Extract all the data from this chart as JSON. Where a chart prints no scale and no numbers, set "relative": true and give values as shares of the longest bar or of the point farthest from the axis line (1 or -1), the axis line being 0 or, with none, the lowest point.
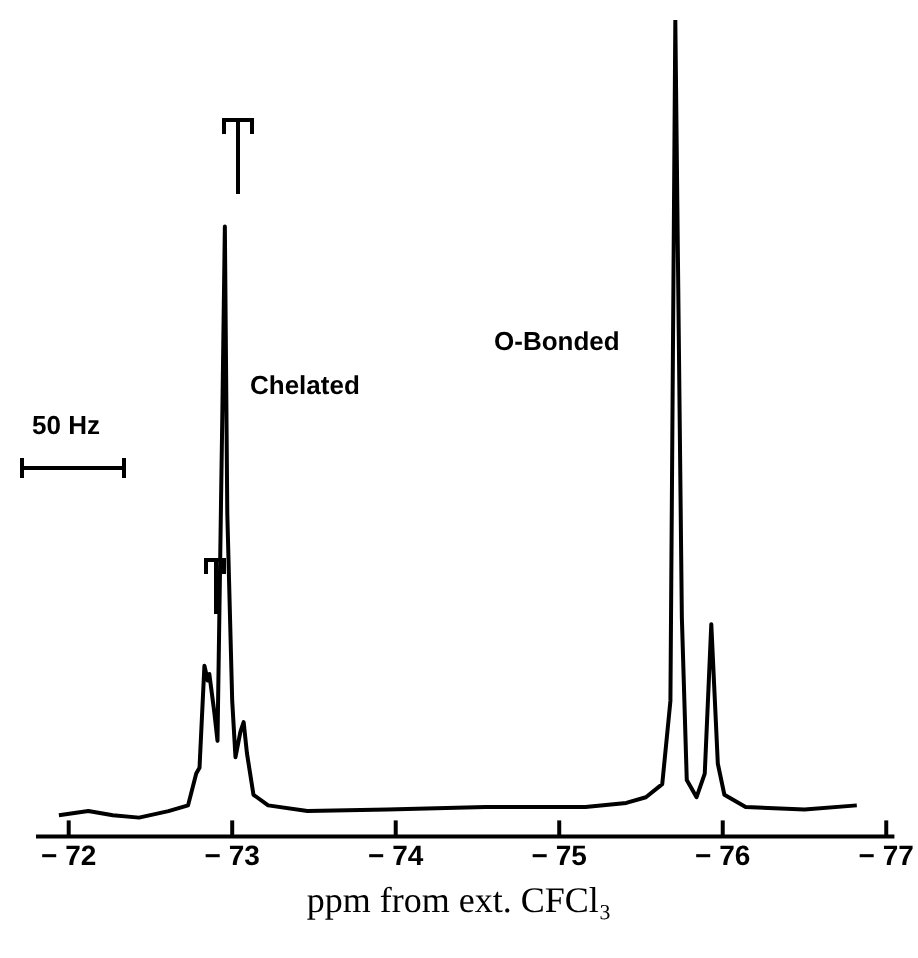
{
  "chart_data": {
    "type": "line",
    "xlabel": "ppm from ext. CFCl₃",
    "relative": true,
    "xlim": [
      -71.8,
      -77.05
    ],
    "xticks": [
      -72,
      -73,
      -74,
      -75,
      -76,
      -77
    ],
    "tick_labels": "x",
    "grid": false,
    "legend": false,
    "marker": "none",
    "line_style": "solid",
    "annotations": [
      "Chelated",
      "O-Bonded",
      "50 Hz"
    ],
    "series": [
      {
        "color": "#000000",
        "x": [
          -71.94,
          -72.12,
          -72.27,
          -72.43,
          -72.61,
          -72.73,
          -72.78,
          -72.8,
          -72.83,
          -72.85,
          -72.86,
          -72.89,
          -72.91,
          -72.94,
          -72.955,
          -72.97,
          -73.0,
          -73.02,
          -73.05,
          -73.07,
          -73.09,
          -73.13,
          -73.22,
          -73.46,
          -73.95,
          -74.55,
          -75.16,
          -75.41,
          -75.53,
          -75.63,
          -75.68,
          -75.71,
          -75.75,
          -75.78,
          -75.84,
          -75.89,
          -75.93,
          -75.97,
          -76.01,
          -76.14,
          -76.5,
          -76.82
        ],
        "values": [
          0.026,
          0.031,
          0.026,
          0.023,
          0.031,
          0.038,
          0.077,
          0.084,
          0.209,
          0.191,
          0.199,
          0.153,
          0.117,
          0.523,
          0.747,
          0.395,
          0.166,
          0.097,
          0.128,
          0.14,
          0.102,
          0.051,
          0.038,
          0.031,
          0.033,
          0.036,
          0.036,
          0.041,
          0.048,
          0.064,
          0.166,
          1,
          0.268,
          0.069,
          0.048,
          0.077,
          0.26,
          0.089,
          0.051,
          0.036,
          0.033,
          0.038
        ]
      }
    ]
  }
}
